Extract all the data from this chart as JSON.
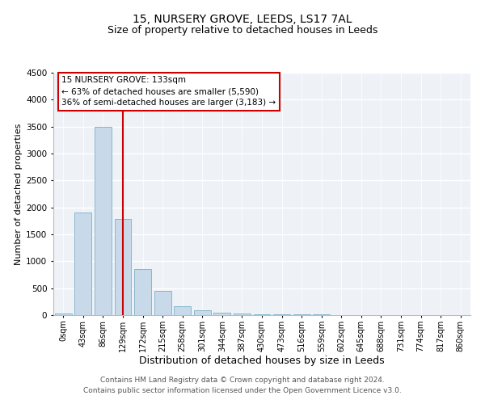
{
  "title": "15, NURSERY GROVE, LEEDS, LS17 7AL",
  "subtitle": "Size of property relative to detached houses in Leeds",
  "xlabel": "Distribution of detached houses by size in Leeds",
  "ylabel": "Number of detached properties",
  "bar_labels": [
    "0sqm",
    "43sqm",
    "86sqm",
    "129sqm",
    "172sqm",
    "215sqm",
    "258sqm",
    "301sqm",
    "344sqm",
    "387sqm",
    "430sqm",
    "473sqm",
    "516sqm",
    "559sqm",
    "602sqm",
    "645sqm",
    "688sqm",
    "731sqm",
    "774sqm",
    "817sqm",
    "860sqm"
  ],
  "bar_values": [
    30,
    1900,
    3500,
    1780,
    850,
    450,
    160,
    90,
    45,
    30,
    20,
    15,
    10,
    8,
    5,
    4,
    3,
    2,
    1,
    1,
    0
  ],
  "bar_color": "#c8daea",
  "bar_edge_color": "#7aafc8",
  "property_line_label": "15 NURSERY GROVE: 133sqm",
  "annotation_line1": "← 63% of detached houses are smaller (5,590)",
  "annotation_line2": "36% of semi-detached houses are larger (3,183) →",
  "annotation_box_color": "#cc0000",
  "red_line_x": 3.0,
  "ylim": [
    0,
    4500
  ],
  "yticks": [
    0,
    500,
    1000,
    1500,
    2000,
    2500,
    3000,
    3500,
    4000,
    4500
  ],
  "footer1": "Contains HM Land Registry data © Crown copyright and database right 2024.",
  "footer2": "Contains public sector information licensed under the Open Government Licence v3.0.",
  "background_color": "#eef2f7",
  "grid_color": "#ffffff",
  "title_fontsize": 10,
  "subtitle_fontsize": 9,
  "xlabel_fontsize": 9,
  "ylabel_fontsize": 8,
  "tick_fontsize": 7,
  "annotation_fontsize": 7.5,
  "footer_fontsize": 6.5
}
